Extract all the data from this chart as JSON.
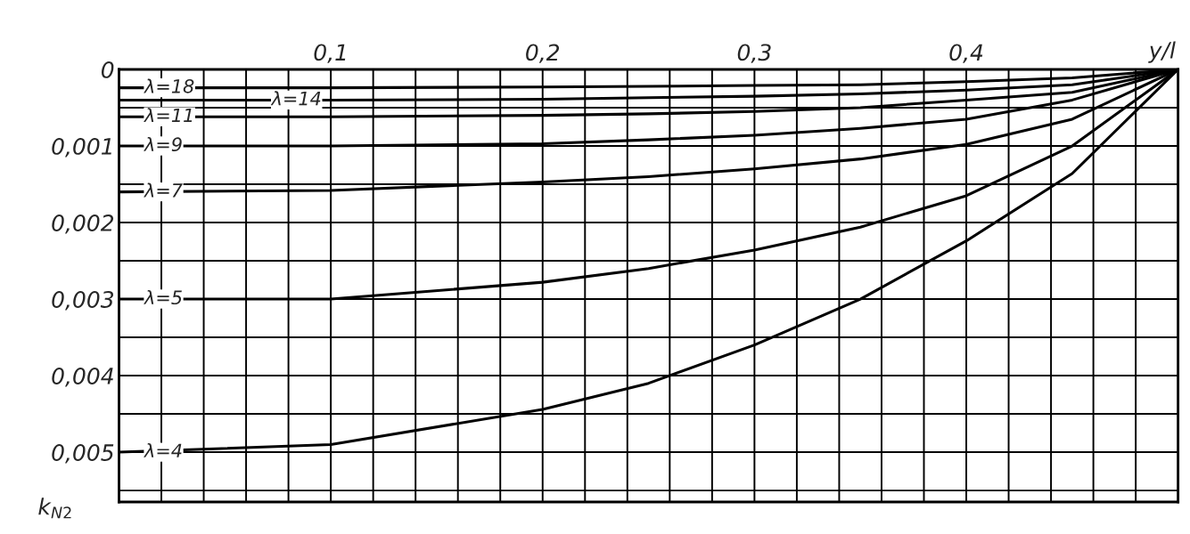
{
  "chart_data": {
    "type": "line",
    "x2label": "y/l",
    "ylabel": "k$_{N2}$",
    "x": [
      0,
      0.1,
      0.2,
      0.25,
      0.3,
      0.35,
      0.4,
      0.45,
      0.5
    ],
    "series": [
      {
        "name": "λ=4",
        "color": "#000000",
        "values": [
          0.005,
          0.0049,
          0.00444,
          0.0041,
          0.0036,
          0.003,
          0.00224,
          0.00136,
          0
        ]
      },
      {
        "name": "λ=5",
        "color": "#000000",
        "values": [
          0.003,
          0.003,
          0.00278,
          0.0026,
          0.00236,
          0.00206,
          0.00165,
          0.001,
          0
        ]
      },
      {
        "name": "λ=7",
        "color": "#000000",
        "values": [
          0.0016,
          0.00158,
          0.00147,
          0.0014,
          0.0013,
          0.00117,
          0.00098,
          0.00065,
          0
        ]
      },
      {
        "name": "λ=9",
        "color": "#000000",
        "values": [
          0.001,
          0.001,
          0.00097,
          0.00092,
          0.00086,
          0.00077,
          0.00065,
          0.0004,
          0
        ]
      },
      {
        "name": "λ=11",
        "color": "#000000",
        "values": [
          0.00062,
          0.00062,
          0.0006,
          0.00058,
          0.00055,
          0.0005,
          0.0004,
          0.0003,
          0
        ]
      },
      {
        "name": "λ=14",
        "color": "#000000",
        "values": [
          0.0004,
          0.0004,
          0.00039,
          0.00037,
          0.00035,
          0.00032,
          0.00027,
          0.0002,
          0
        ]
      },
      {
        "name": "λ=18",
        "color": "#000000",
        "values": [
          0.00024,
          0.00024,
          0.00023,
          0.00022,
          0.00021,
          0.0002,
          0.00016,
          0.00011,
          0
        ]
      }
    ],
    "xlim": [
      0,
      0.5
    ],
    "ylim": [
      0.00565,
      0
    ],
    "xticks": [
      {
        "value": 0.1,
        "label": "0,1"
      },
      {
        "value": 0.2,
        "label": "0,2"
      },
      {
        "value": 0.3,
        "label": "0,3"
      },
      {
        "value": 0.4,
        "label": "0,4"
      }
    ],
    "yticks": [
      0,
      {
        "value": 0.001,
        "label": "0,001"
      },
      {
        "value": 0.002,
        "label": "0,002"
      },
      {
        "value": 0.003,
        "label": "0,003"
      },
      {
        "value": 0.004,
        "label": "0,004"
      },
      {
        "value": 0.005,
        "label": "0,005"
      }
    ],
    "grid": true,
    "marker": "none",
    "line_style": "solid"
  }
}
